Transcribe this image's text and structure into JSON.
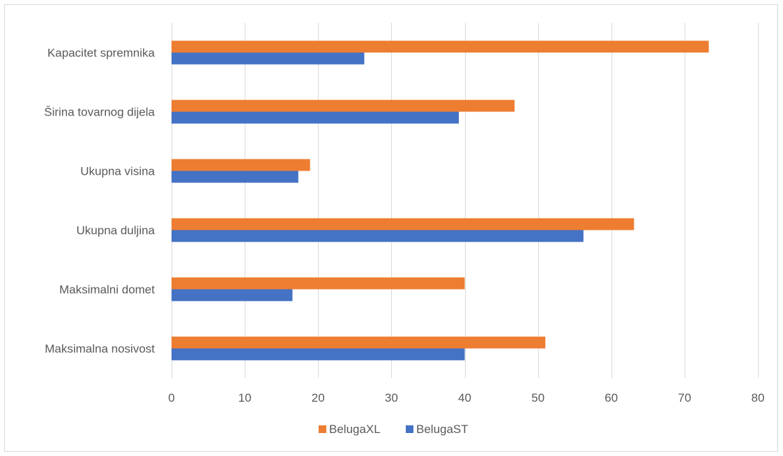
{
  "chart_data": {
    "type": "bar",
    "orientation": "horizontal",
    "categories": [
      "Maksimalna nosivost",
      "Maksimalni domet",
      "Ukupna duljina",
      "Ukupna visina",
      "Širina tovarnog dijela",
      "Kapacitet spremnika"
    ],
    "series": [
      {
        "name": "BelugaXL",
        "color": "#ED7D31",
        "values": [
          51,
          40,
          63.1,
          18.9,
          46.8,
          73.3
        ]
      },
      {
        "name": "BelugaST",
        "color": "#4472C4",
        "values": [
          40,
          16.5,
          56.2,
          17.3,
          39.2,
          26.3
        ]
      }
    ],
    "xlim": [
      0,
      80
    ],
    "xticks": [
      0,
      10,
      20,
      30,
      40,
      50,
      60,
      70,
      80
    ],
    "grid": "vertical",
    "legend": "bottom",
    "title": "",
    "xlabel": "",
    "ylabel": ""
  }
}
